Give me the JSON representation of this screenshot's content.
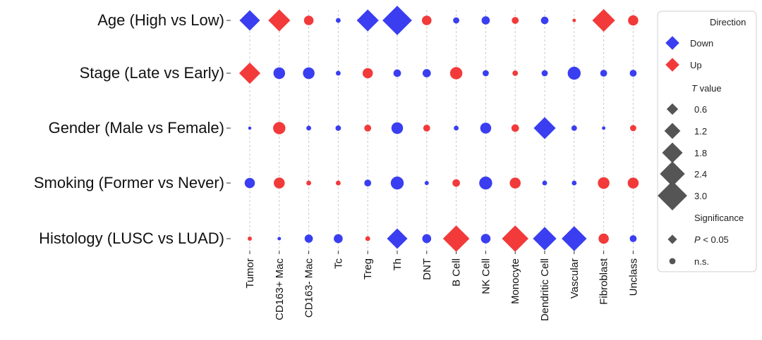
{
  "colors": {
    "down": "#3a3ef0",
    "up": "#f23a3a",
    "neutral": "#555555",
    "grid": "#c8c8c8"
  },
  "chart_data": {
    "type": "scatter",
    "rows": [
      "Age (High vs Low)",
      "Stage (Late vs Early)",
      "Gender (Male vs Female)",
      "Smoking (Former vs Never)",
      "Histology (LUSC vs LUAD)"
    ],
    "columns": [
      "Tumor",
      "CD163+ Mac",
      "CD163- Mac",
      "Tc",
      "Treg",
      "Th",
      "DNT",
      "B Cell",
      "NK Cell",
      "Monocyte",
      "Dendritic Cell",
      "Vascular",
      "Fibroblast",
      "Unclass"
    ],
    "points": [
      [
        {
          "dir": "Down",
          "t": 1.8,
          "sig": true
        },
        {
          "dir": "Up",
          "t": 2.0,
          "sig": true
        },
        {
          "dir": "Up",
          "t": 1.0,
          "sig": false
        },
        {
          "dir": "Down",
          "t": 0.3,
          "sig": false
        },
        {
          "dir": "Down",
          "t": 2.0,
          "sig": true
        },
        {
          "dir": "Down",
          "t": 3.0,
          "sig": true
        },
        {
          "dir": "Up",
          "t": 1.0,
          "sig": false
        },
        {
          "dir": "Down",
          "t": 0.5,
          "sig": false
        },
        {
          "dir": "Down",
          "t": 0.8,
          "sig": false
        },
        {
          "dir": "Up",
          "t": 0.6,
          "sig": false
        },
        {
          "dir": "Down",
          "t": 0.7,
          "sig": false
        },
        {
          "dir": "Up",
          "t": 0.1,
          "sig": false
        },
        {
          "dir": "Up",
          "t": 2.1,
          "sig": true
        },
        {
          "dir": "Up",
          "t": 1.1,
          "sig": false
        }
      ],
      [
        {
          "dir": "Up",
          "t": 1.9,
          "sig": true
        },
        {
          "dir": "Down",
          "t": 1.3,
          "sig": false
        },
        {
          "dir": "Down",
          "t": 1.3,
          "sig": false
        },
        {
          "dir": "Down",
          "t": 0.3,
          "sig": false
        },
        {
          "dir": "Up",
          "t": 1.1,
          "sig": false
        },
        {
          "dir": "Down",
          "t": 0.7,
          "sig": false
        },
        {
          "dir": "Down",
          "t": 0.8,
          "sig": false
        },
        {
          "dir": "Up",
          "t": 1.4,
          "sig": false
        },
        {
          "dir": "Down",
          "t": 0.5,
          "sig": false
        },
        {
          "dir": "Up",
          "t": 0.4,
          "sig": false
        },
        {
          "dir": "Down",
          "t": 0.5,
          "sig": false
        },
        {
          "dir": "Down",
          "t": 1.5,
          "sig": false
        },
        {
          "dir": "Down",
          "t": 0.6,
          "sig": false
        },
        {
          "dir": "Down",
          "t": 0.6,
          "sig": false
        }
      ],
      [
        {
          "dir": "Down",
          "t": 0.05,
          "sig": false
        },
        {
          "dir": "Up",
          "t": 1.4,
          "sig": false
        },
        {
          "dir": "Down",
          "t": 0.3,
          "sig": false
        },
        {
          "dir": "Down",
          "t": 0.4,
          "sig": false
        },
        {
          "dir": "Up",
          "t": 0.6,
          "sig": false
        },
        {
          "dir": "Down",
          "t": 1.3,
          "sig": false
        },
        {
          "dir": "Up",
          "t": 0.6,
          "sig": false
        },
        {
          "dir": "Down",
          "t": 0.3,
          "sig": false
        },
        {
          "dir": "Down",
          "t": 1.2,
          "sig": false
        },
        {
          "dir": "Up",
          "t": 0.7,
          "sig": false
        },
        {
          "dir": "Down",
          "t": 2.0,
          "sig": true
        },
        {
          "dir": "Down",
          "t": 0.4,
          "sig": false
        },
        {
          "dir": "Down",
          "t": 0.1,
          "sig": false
        },
        {
          "dir": "Up",
          "t": 0.5,
          "sig": false
        }
      ],
      [
        {
          "dir": "Down",
          "t": 1.1,
          "sig": false
        },
        {
          "dir": "Up",
          "t": 1.2,
          "sig": false
        },
        {
          "dir": "Up",
          "t": 0.3,
          "sig": false
        },
        {
          "dir": "Up",
          "t": 0.3,
          "sig": false
        },
        {
          "dir": "Down",
          "t": 0.6,
          "sig": false
        },
        {
          "dir": "Down",
          "t": 1.5,
          "sig": false
        },
        {
          "dir": "Down",
          "t": 0.2,
          "sig": false
        },
        {
          "dir": "Up",
          "t": 0.7,
          "sig": false
        },
        {
          "dir": "Down",
          "t": 1.5,
          "sig": false
        },
        {
          "dir": "Up",
          "t": 1.2,
          "sig": false
        },
        {
          "dir": "Down",
          "t": 0.3,
          "sig": false
        },
        {
          "dir": "Down",
          "t": 0.3,
          "sig": false
        },
        {
          "dir": "Up",
          "t": 1.3,
          "sig": false
        },
        {
          "dir": "Up",
          "t": 1.2,
          "sig": false
        }
      ],
      [
        {
          "dir": "Up",
          "t": 0.2,
          "sig": false
        },
        {
          "dir": "Down",
          "t": 0.1,
          "sig": false
        },
        {
          "dir": "Down",
          "t": 0.8,
          "sig": false
        },
        {
          "dir": "Down",
          "t": 0.9,
          "sig": false
        },
        {
          "dir": "Up",
          "t": 0.3,
          "sig": false
        },
        {
          "dir": "Down",
          "t": 1.8,
          "sig": true
        },
        {
          "dir": "Down",
          "t": 0.9,
          "sig": false
        },
        {
          "dir": "Up",
          "t": 2.6,
          "sig": true
        },
        {
          "dir": "Down",
          "t": 1.0,
          "sig": false
        },
        {
          "dir": "Up",
          "t": 2.6,
          "sig": true
        },
        {
          "dir": "Down",
          "t": 2.2,
          "sig": true
        },
        {
          "dir": "Down",
          "t": 2.4,
          "sig": true
        },
        {
          "dir": "Up",
          "t": 1.1,
          "sig": false
        },
        {
          "dir": "Down",
          "t": 0.6,
          "sig": false
        }
      ]
    ],
    "legend": {
      "direction_title": "Direction",
      "direction_items": [
        "Down",
        "Up"
      ],
      "t_title_italic": "T",
      "t_title_rest": " value",
      "t_values": [
        0.6,
        1.2,
        1.8,
        2.4,
        3.0
      ],
      "t_labels": [
        "0.6",
        "1.2",
        "1.8",
        "2.4",
        "3.0"
      ],
      "significance_title": "Significance",
      "sig_label_italic": "P",
      "sig_label_rest": " < 0.05",
      "ns_label": "n.s."
    }
  }
}
